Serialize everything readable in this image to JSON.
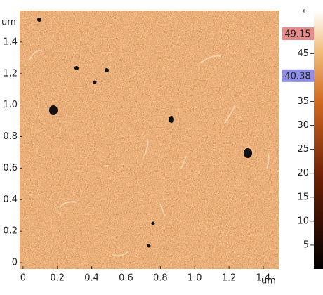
{
  "chart_data": {
    "type": "heatmap",
    "x_unit": "um",
    "y_unit": "um",
    "xlim": [
      -0.02,
      1.49
    ],
    "xticks": [
      0,
      0.2,
      0.4,
      0.6,
      0.8,
      {
        "value": 1,
        "label": "1.0"
      },
      1.2,
      1.4
    ],
    "ylim": [
      -0.04,
      1.6
    ],
    "yticks": [
      0,
      0.2,
      0.4,
      0.6,
      0.8,
      {
        "value": 1,
        "label": "1.0"
      },
      1.2,
      1.4
    ],
    "colorbar": {
      "unit": "°",
      "lim": [
        0,
        54
      ],
      "ticks": [
        5,
        10,
        15,
        20,
        25,
        30,
        35,
        40,
        45
      ],
      "markers": [
        {
          "value": 49.15,
          "color": "#e58a8a"
        },
        {
          "value": 40.38,
          "color": "#8e8ee6"
        }
      ]
    }
  }
}
